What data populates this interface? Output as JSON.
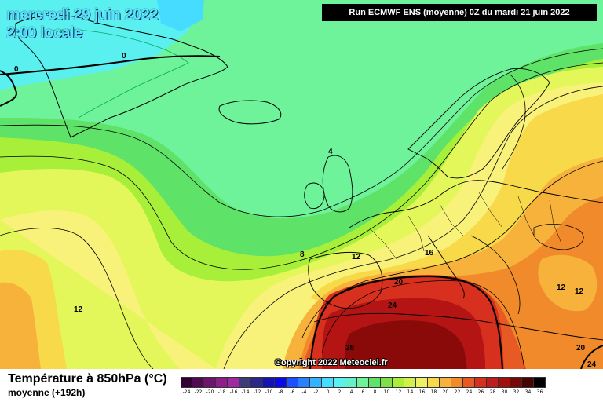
{
  "header": {
    "run_info": "Run ECMWF ENS (moyenne) 0Z du mardi 21 juin 2022",
    "date_line1": "mercredi 29 juin 2022",
    "date_line2": "2:00 locale"
  },
  "footer": {
    "title": "Température à 850hPa (°C)",
    "subtitle": "moyenne   (+192h)",
    "copyright": "Copyright 2022 Meteociel.fr"
  },
  "colors": {
    "green_light": "#6ef39a",
    "green": "#5ee368",
    "lime": "#a8ef3a",
    "yellow_green": "#e3f75a",
    "yellow": "#f9f27a",
    "yellow_deep": "#f8d94a",
    "orange_light": "#f6b23a",
    "orange": "#f08a2a",
    "red_orange": "#e85a24",
    "red": "#d8301e",
    "dark_red": "#b41414",
    "deep_red": "#8a0a0a"
  },
  "legend": {
    "labels": [
      "-24",
      "-22",
      "-20",
      "-18",
      "-16",
      "-14",
      "-12",
      "-10",
      "-8",
      "-6",
      "-4",
      "-2",
      "0",
      "2",
      "4",
      "6",
      "8",
      "10",
      "12",
      "14",
      "16",
      "18",
      "20",
      "22",
      "24",
      "26",
      "28",
      "30",
      "32",
      "34",
      "36"
    ],
    "colors": [
      "#320032",
      "#500a50",
      "#6e146e",
      "#8c1e8c",
      "#a028a0",
      "#3c3c78",
      "#28288c",
      "#1414b4",
      "#0a0ae6",
      "#1e50ff",
      "#2882ff",
      "#32b4ff",
      "#46dcff",
      "#5af0f0",
      "#64f0c8",
      "#6ef39a",
      "#5ee368",
      "#7ee048",
      "#a8ef3a",
      "#d2f04a",
      "#f0f064",
      "#f8d94a",
      "#f6b23a",
      "#f08a2a",
      "#e85a24",
      "#d8301e",
      "#c01c1c",
      "#a01010",
      "#780808",
      "#460404",
      "#000000"
    ]
  },
  "isotherms": [
    {
      "value": "0"
    },
    {
      "value": "0"
    },
    {
      "value": "4"
    },
    {
      "value": "8"
    },
    {
      "value": "12"
    },
    {
      "value": "12"
    },
    {
      "value": "16"
    },
    {
      "value": "20"
    },
    {
      "value": "24"
    },
    {
      "value": "28"
    },
    {
      "value": "12"
    },
    {
      "value": "12"
    },
    {
      "value": "20"
    },
    {
      "value": "24"
    }
  ]
}
